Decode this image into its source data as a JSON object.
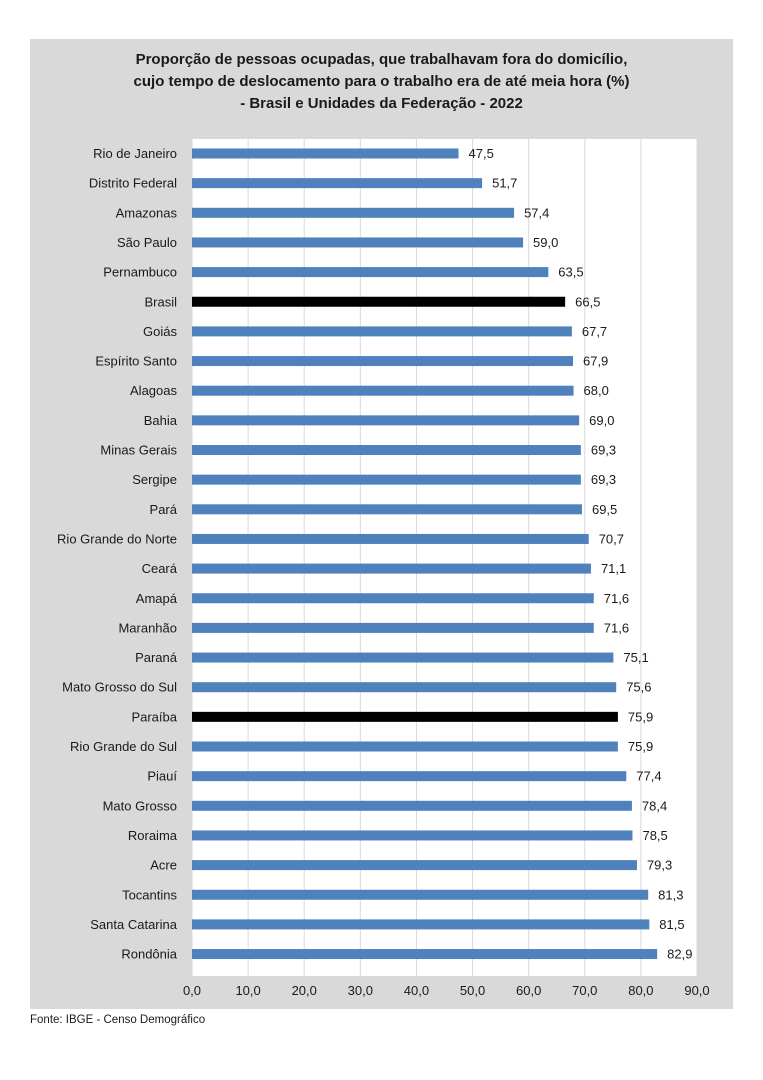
{
  "chart_data": {
    "type": "bar",
    "orientation": "horizontal",
    "title": [
      "Proporção de pessoas ocupadas, que trabalhavam fora do domicílio,",
      "cujo tempo de deslocamento para o trabalho era de até meia hora (%)",
      "- Brasil e Unidades da Federação - 2022"
    ],
    "categories": [
      "Rio de Janeiro",
      "Distrito Federal",
      "Amazonas",
      "São Paulo",
      "Pernambuco",
      "Brasil",
      "Goiás",
      "Espírito Santo",
      "Alagoas",
      "Bahia",
      "Minas Gerais",
      "Sergipe",
      "Pará",
      "Rio Grande do Norte",
      "Ceará",
      "Amapá",
      "Maranhão",
      "Paraná",
      "Mato Grosso do Sul",
      "Paraíba",
      "Rio Grande do Sul",
      "Piauí",
      "Mato Grosso",
      "Roraima",
      "Acre",
      "Tocantins",
      "Santa Catarina",
      "Rondônia"
    ],
    "values": [
      47.5,
      51.7,
      57.4,
      59.0,
      63.5,
      66.5,
      67.7,
      67.9,
      68.0,
      69.0,
      69.3,
      69.3,
      69.5,
      70.7,
      71.1,
      71.6,
      71.6,
      75.1,
      75.6,
      75.9,
      75.9,
      77.4,
      78.4,
      78.5,
      79.3,
      81.3,
      81.5,
      82.9
    ],
    "value_labels": [
      "47,5",
      "51,7",
      "57,4",
      "59,0",
      "63,5",
      "66,5",
      "67,7",
      "67,9",
      "68,0",
      "69,0",
      "69,3",
      "69,3",
      "69,5",
      "70,7",
      "71,1",
      "71,6",
      "71,6",
      "75,1",
      "75,6",
      "75,9",
      "75,9",
      "77,4",
      "78,4",
      "78,5",
      "79,3",
      "81,3",
      "81,5",
      "82,9"
    ],
    "highlighted": [
      "Brasil",
      "Paraíba"
    ],
    "xlim": [
      0,
      90
    ],
    "xticks": [
      0,
      10,
      20,
      30,
      40,
      50,
      60,
      70,
      80,
      90
    ],
    "xtick_labels": [
      "0,0",
      "10,0",
      "20,0",
      "30,0",
      "40,0",
      "50,0",
      "60,0",
      "70,0",
      "80,0",
      "90,0"
    ],
    "xlabel": "",
    "ylabel": "",
    "grid": true,
    "legend": "none",
    "colors": {
      "bar": "#4f81bd",
      "highlight_bar": "#000000",
      "plot_background": "#ffffff",
      "chart_background": "#d9d9d9",
      "gridline": "#d9d9d9"
    }
  },
  "footer": {
    "source": "Fonte: IBGE - Censo Demográfico"
  }
}
